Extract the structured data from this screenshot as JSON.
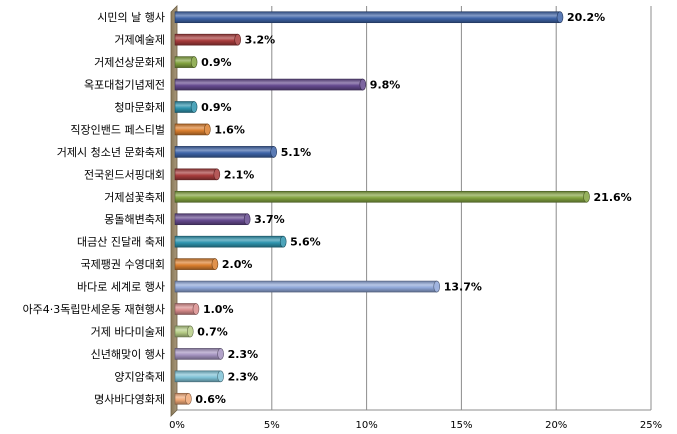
{
  "chart_data": {
    "type": "bar",
    "orientation": "horizontal",
    "style": "3d-cylinder",
    "categories": [
      "시민의 날 행사",
      "거제예술제",
      "거제선상문화제",
      "옥포대첩기념제전",
      "청마문화제",
      "직장인밴드 페스티벌",
      "거제시 청소년 문화축제",
      "전국윈드서핑대회",
      "거제섬꽃축제",
      "몽돌해변축제",
      "대금산 진달래 축제",
      "국제팽권 수영대회",
      "바다로 세계로 행사",
      "아주4·3독립만세운동 재현행사",
      "거제 바다미술제",
      "신년해맞이 행사",
      "양지암축제",
      "명사바다영화제"
    ],
    "values": [
      20.2,
      3.2,
      0.9,
      9.8,
      0.9,
      1.6,
      5.1,
      2.1,
      21.6,
      3.7,
      5.6,
      2.0,
      13.7,
      1.0,
      0.7,
      2.3,
      2.3,
      0.6
    ],
    "value_labels": [
      "20.2%",
      "3.2%",
      "0.9%",
      "9.8%",
      "0.9%",
      "1.6%",
      "5.1%",
      "2.1%",
      "21.6%",
      "3.7%",
      "5.6%",
      "2.0%",
      "13.7%",
      "1.0%",
      "0.7%",
      "2.3%",
      "2.3%",
      "0.6%"
    ],
    "colors": [
      "#3E64A8",
      "#A83C3C",
      "#82A33F",
      "#654A8F",
      "#2E94AE",
      "#DB7F2E",
      "#3E64A8",
      "#A83C3C",
      "#82A33F",
      "#654A8F",
      "#2E94AE",
      "#DB7F2E",
      "#8FA7D9",
      "#D98C8C",
      "#B5CC85",
      "#A493C0",
      "#7FC2D6",
      "#F0A876"
    ],
    "xlim": [
      0,
      25
    ],
    "xticks": [
      0,
      5,
      10,
      15,
      20,
      25
    ],
    "xtick_labels": [
      "0%",
      "5%",
      "10%",
      "15%",
      "20%",
      "25%"
    ],
    "grid": true,
    "title": "",
    "xlabel": "",
    "ylabel": ""
  }
}
